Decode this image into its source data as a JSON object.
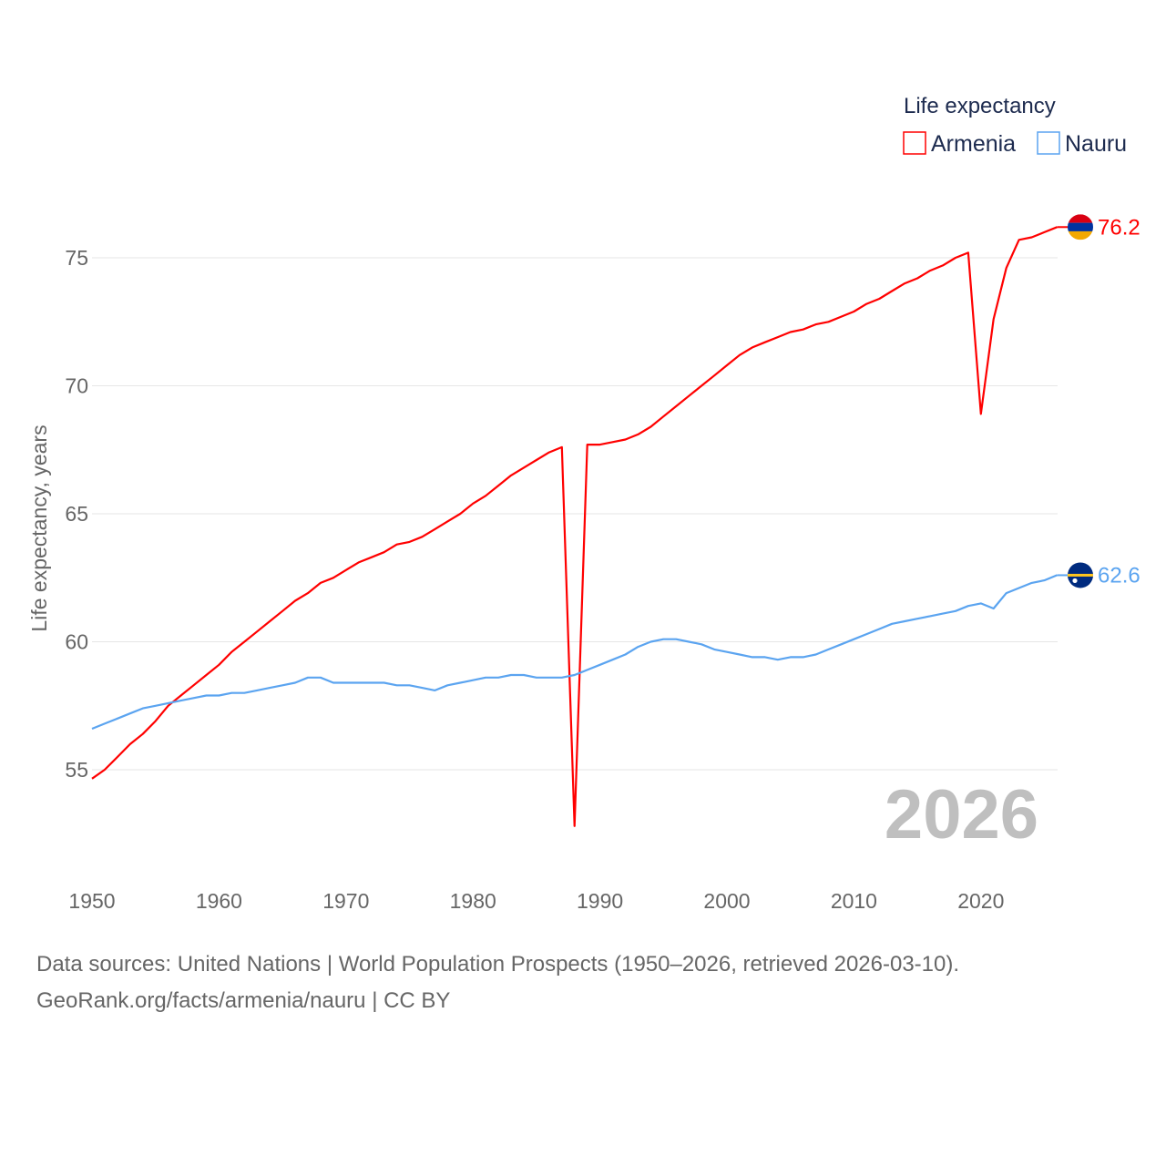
{
  "chart_data": {
    "type": "line",
    "legend_title": "Life expectancy",
    "legend_placement": "top-right",
    "ylabel": "Life expectancy, years",
    "xlabel": "",
    "ylim": [
      52,
      77.5
    ],
    "xlim": [
      1950,
      2026
    ],
    "yticks": [
      "55",
      "60",
      "65",
      "70",
      "75"
    ],
    "ytick_values": [
      55,
      60,
      65,
      70,
      75
    ],
    "xticks": [
      "1950",
      "1960",
      "1970",
      "1980",
      "1990",
      "2000",
      "2010",
      "2020"
    ],
    "xtick_values": [
      1950,
      1960,
      1970,
      1980,
      1990,
      2000,
      2010,
      2020
    ],
    "grid": true,
    "year_label": "2026",
    "x_start": 1950,
    "series": [
      {
        "name": "Armenia",
        "color": "#ff0000",
        "end_label": "76.2",
        "flag": "armenia-flag",
        "values": [
          54.65,
          55.0,
          55.5,
          56.0,
          56.4,
          56.9,
          57.5,
          57.9,
          58.3,
          58.7,
          59.1,
          59.6,
          60.0,
          60.4,
          60.8,
          61.2,
          61.6,
          61.9,
          62.3,
          62.5,
          62.8,
          63.1,
          63.3,
          63.5,
          63.8,
          63.9,
          64.1,
          64.4,
          64.7,
          65.0,
          65.4,
          65.7,
          66.1,
          66.5,
          66.8,
          67.1,
          67.4,
          67.6,
          52.8,
          67.7,
          67.7,
          67.8,
          67.9,
          68.1,
          68.4,
          68.8,
          69.2,
          69.6,
          70.0,
          70.4,
          70.8,
          71.2,
          71.5,
          71.7,
          71.9,
          72.1,
          72.2,
          72.4,
          72.5,
          72.7,
          72.9,
          73.2,
          73.4,
          73.7,
          74.0,
          74.2,
          74.5,
          74.7,
          75.0,
          75.2,
          68.9,
          72.6,
          74.6,
          75.7,
          75.8,
          76.0,
          76.2
        ]
      },
      {
        "name": "Nauru",
        "color": "#5ba4f0",
        "end_label": "62.6",
        "flag": "nauru-flag",
        "values": [
          56.6,
          56.8,
          57.0,
          57.2,
          57.4,
          57.5,
          57.6,
          57.7,
          57.8,
          57.9,
          57.9,
          58.0,
          58.0,
          58.1,
          58.2,
          58.3,
          58.4,
          58.6,
          58.6,
          58.4,
          58.4,
          58.4,
          58.4,
          58.4,
          58.3,
          58.3,
          58.2,
          58.1,
          58.3,
          58.4,
          58.5,
          58.6,
          58.6,
          58.7,
          58.7,
          58.6,
          58.6,
          58.6,
          58.7,
          58.9,
          59.1,
          59.3,
          59.5,
          59.8,
          60.0,
          60.1,
          60.1,
          60.0,
          59.9,
          59.7,
          59.6,
          59.5,
          59.4,
          59.4,
          59.3,
          59.4,
          59.4,
          59.5,
          59.7,
          59.9,
          60.1,
          60.3,
          60.5,
          60.7,
          60.8,
          60.9,
          61.0,
          61.1,
          61.2,
          61.4,
          61.5,
          61.3,
          61.9,
          62.1,
          62.3,
          62.4,
          62.6
        ]
      }
    ]
  },
  "footer": {
    "line1": "Data sources: United Nations | World Population Prospects (1950–2026, retrieved 2026-03-10).",
    "line2": "GeoRank.org/facts/armenia/nauru | CC BY"
  }
}
